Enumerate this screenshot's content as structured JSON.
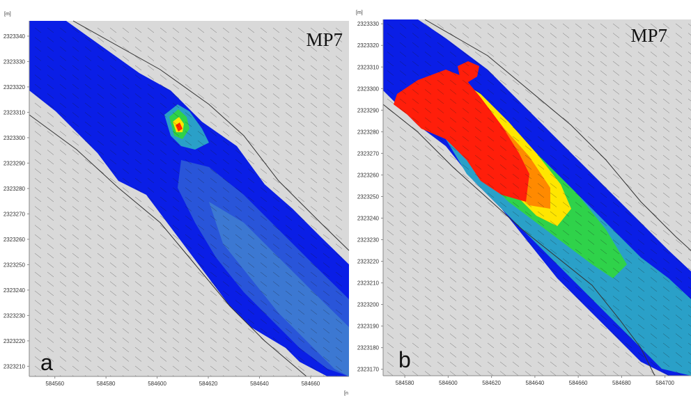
{
  "chart_data": [
    {
      "type": "heatmap",
      "panel_label": "a",
      "annotation": "MP7",
      "unit_label": "[m]",
      "x_unit_label": "[n",
      "xlim": [
        584550,
        584675
      ],
      "ylim": [
        2323206,
        2323346
      ],
      "x_ticks": [
        "584560",
        "584580",
        "584600",
        "584620",
        "584640",
        "584660"
      ],
      "y_ticks": [
        "2323340",
        "2323330",
        "2323320",
        "2323310",
        "2323300",
        "2323290",
        "2323280",
        "2323270",
        "2323260",
        "2323250",
        "2323240",
        "2323230",
        "2323220",
        "2323210"
      ],
      "colors": {
        "background": "#d9d9d9",
        "low": "#0a1ee6",
        "mid": "#2f6fd0",
        "high": "#ffe600",
        "peak": "#ff2a00"
      }
    },
    {
      "type": "heatmap",
      "panel_label": "b",
      "annotation": "MP7",
      "unit_label": "[m]",
      "xlim": [
        584570,
        584712
      ],
      "ylim": [
        2323167,
        2323332
      ],
      "x_ticks": [
        "584580",
        "584600",
        "584620",
        "584640",
        "584660",
        "584680",
        "584700"
      ],
      "y_ticks": [
        "2323330",
        "2323320",
        "2323310",
        "2323300",
        "2323290",
        "2323280",
        "2323270",
        "2323260",
        "2323250",
        "2323240",
        "2323230",
        "2323220",
        "2323210",
        "2323200",
        "2323190",
        "2323180",
        "2323170"
      ],
      "colors": {
        "background": "#d9d9d9",
        "low": "#0a1ee6",
        "mid": "#2aa0c8",
        "green": "#2fd24a",
        "yellow": "#ffe600",
        "orange": "#ff8a00",
        "peak": "#ff1e0a"
      }
    }
  ]
}
